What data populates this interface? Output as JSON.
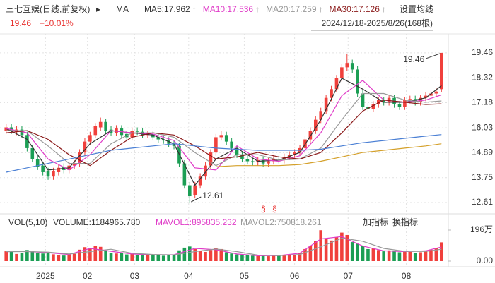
{
  "header": {
    "title": "三七互娱(日线,前复权)",
    "ma_label": "MA",
    "settings": "设置均线",
    "price": "19.46",
    "change": "+10.01%",
    "range": "2024/12/18-2025/8/26(168根)"
  },
  "chart_data": [
    {
      "type": "candlestick",
      "up_color": "#f0403c",
      "down_color": "#1b9e54",
      "grid": true,
      "xlim": [
        -0.5,
        83.5
      ],
      "xticks": [
        {
          "value": 7.5,
          "label": "2025"
        },
        {
          "value": 15.5,
          "label": "02"
        },
        {
          "value": 24.5,
          "label": "03"
        },
        {
          "value": 34.8,
          "label": "04"
        },
        {
          "value": 45.4,
          "label": "05"
        },
        {
          "value": 55,
          "label": "06"
        },
        {
          "value": 65.2,
          "label": "07"
        },
        {
          "value": 76.3,
          "label": "08"
        }
      ],
      "ylim": [
        12.19,
        20.33
      ],
      "yticks": [
        12.61,
        13.75,
        14.89,
        16.03,
        17.18,
        18.32,
        19.46
      ],
      "high_label": "19.46",
      "low_label": "12.61",
      "open": [
        15.9,
        16.05,
        15.85,
        15.95,
        15.7,
        15.1,
        14.6,
        14.3,
        14.05,
        13.8,
        14.0,
        14.25,
        14.1,
        14.3,
        14.4,
        14.9,
        15.4,
        15.7,
        16.05,
        16.3,
        15.95,
        15.8,
        16.0,
        15.75,
        15.6,
        15.9,
        15.85,
        15.7,
        15.75,
        15.6,
        15.5,
        15.45,
        15.3,
        15.2,
        14.4,
        13.4,
        12.95,
        13.4,
        13.8,
        14.3,
        14.9,
        15.6,
        15.7,
        15.4,
        15.1,
        14.8,
        14.6,
        14.5,
        14.45,
        14.55,
        14.4,
        14.5,
        14.6,
        14.55,
        14.7,
        14.8,
        14.9,
        15.1,
        15.5,
        15.9,
        16.4,
        16.8,
        17.4,
        17.8,
        18.3,
        18.8,
        19.0,
        18.7,
        17.6,
        17.0,
        16.9,
        17.1,
        17.3,
        17.2,
        17.4,
        17.1,
        17.0,
        17.3,
        17.35,
        17.2,
        17.4,
        17.5,
        17.6,
        17.8
      ],
      "high": [
        16.2,
        16.2,
        16.1,
        16.1,
        15.85,
        15.25,
        14.75,
        14.45,
        14.2,
        14.2,
        14.35,
        14.4,
        14.45,
        14.55,
        15.05,
        15.55,
        15.85,
        16.25,
        16.5,
        16.45,
        16.1,
        16.15,
        16.15,
        15.9,
        16.05,
        16.05,
        16.0,
        15.9,
        15.9,
        15.75,
        15.65,
        15.6,
        15.45,
        15.35,
        14.55,
        13.55,
        13.55,
        13.95,
        14.45,
        15.05,
        15.75,
        15.9,
        15.85,
        15.55,
        15.25,
        14.95,
        14.75,
        14.65,
        14.7,
        14.7,
        14.65,
        14.75,
        14.75,
        14.85,
        14.95,
        15.05,
        15.25,
        15.65,
        16.05,
        16.55,
        16.95,
        17.55,
        17.95,
        18.45,
        18.95,
        19.4,
        19.15,
        18.85,
        17.75,
        17.15,
        17.25,
        17.45,
        17.45,
        17.55,
        17.55,
        17.25,
        17.45,
        17.5,
        17.5,
        17.55,
        17.65,
        17.75,
        17.84,
        19.46
      ],
      "low": [
        15.75,
        15.75,
        15.7,
        15.55,
        14.95,
        14.45,
        14.1,
        13.85,
        13.65,
        13.65,
        13.85,
        13.95,
        13.95,
        14.15,
        14.25,
        14.75,
        15.25,
        15.55,
        15.9,
        15.75,
        15.65,
        15.65,
        15.55,
        15.45,
        15.45,
        15.7,
        15.55,
        15.55,
        15.45,
        15.35,
        15.3,
        15.15,
        15.05,
        14.25,
        13.25,
        12.61,
        12.8,
        13.25,
        13.65,
        14.15,
        14.75,
        15.45,
        15.25,
        14.95,
        14.65,
        14.45,
        14.35,
        14.3,
        14.3,
        14.25,
        14.25,
        14.35,
        14.4,
        14.4,
        14.55,
        14.65,
        14.75,
        14.95,
        15.35,
        15.75,
        16.25,
        16.65,
        17.25,
        17.65,
        18.15,
        18.65,
        18.55,
        17.45,
        16.85,
        16.75,
        16.75,
        16.95,
        17.05,
        17.05,
        16.95,
        16.85,
        16.85,
        17.15,
        17.05,
        17.05,
        17.25,
        17.35,
        17.45,
        17.65
      ],
      "close": [
        16.05,
        15.9,
        15.95,
        15.7,
        15.1,
        14.6,
        14.25,
        14.0,
        13.8,
        14.05,
        14.2,
        14.1,
        14.3,
        14.4,
        14.9,
        15.4,
        15.7,
        16.1,
        16.3,
        15.9,
        15.8,
        16.0,
        15.7,
        15.6,
        15.9,
        15.85,
        15.7,
        15.75,
        15.6,
        15.5,
        15.45,
        15.3,
        15.2,
        14.4,
        13.4,
        12.9,
        13.4,
        13.8,
        14.3,
        14.9,
        15.6,
        15.7,
        15.4,
        15.1,
        14.8,
        14.6,
        14.5,
        14.45,
        14.55,
        14.4,
        14.5,
        14.6,
        14.55,
        14.7,
        14.8,
        14.9,
        15.1,
        15.5,
        15.9,
        16.4,
        16.8,
        17.4,
        17.8,
        18.3,
        18.8,
        19.0,
        18.7,
        17.6,
        17.0,
        16.9,
        17.1,
        17.3,
        17.2,
        17.4,
        17.1,
        17.0,
        17.3,
        17.35,
        17.2,
        17.4,
        17.5,
        17.6,
        17.69,
        19.46
      ],
      "series": [
        {
          "name": "MA5:17.962",
          "color": "#333333",
          "x": [
            0,
            4,
            8,
            12,
            16,
            20,
            24,
            28,
            32,
            36,
            40,
            44,
            48,
            52,
            56,
            60,
            64,
            68,
            72,
            76,
            80,
            83
          ],
          "values": [
            16.0,
            15.5,
            14.1,
            14.2,
            15.3,
            15.9,
            15.8,
            15.7,
            15.3,
            13.4,
            14.6,
            15.1,
            14.5,
            14.55,
            14.9,
            16.4,
            18.3,
            17.8,
            17.2,
            17.2,
            17.4,
            17.96
          ]
        },
        {
          "name": "MA10:17.536",
          "color": "#e03cc8",
          "x": [
            0,
            4,
            8,
            12,
            16,
            20,
            24,
            28,
            32,
            36,
            40,
            44,
            48,
            52,
            56,
            60,
            64,
            68,
            72,
            76,
            80,
            83
          ],
          "values": [
            16.0,
            15.8,
            14.6,
            14.1,
            14.8,
            15.9,
            15.8,
            15.75,
            15.45,
            14.2,
            14.1,
            15.2,
            14.6,
            14.5,
            14.75,
            15.8,
            17.5,
            18.2,
            17.3,
            17.2,
            17.3,
            17.54
          ]
        },
        {
          "name": "MA20:17.259",
          "color": "#999999",
          "x": [
            0,
            4,
            8,
            12,
            16,
            20,
            24,
            28,
            32,
            36,
            40,
            44,
            48,
            52,
            56,
            60,
            64,
            68,
            72,
            76,
            80,
            83
          ],
          "values": [
            15.9,
            15.9,
            15.2,
            14.4,
            14.4,
            15.3,
            15.8,
            15.8,
            15.6,
            14.9,
            14.3,
            14.8,
            14.8,
            14.55,
            14.6,
            15.1,
            16.4,
            17.6,
            17.6,
            17.3,
            17.2,
            17.26
          ]
        },
        {
          "name": "MA30:17.126",
          "color": "#8b1a1a",
          "x": [
            0,
            4,
            8,
            12,
            16,
            20,
            24,
            28,
            32,
            36,
            40,
            44,
            48,
            52,
            56,
            60,
            64,
            68,
            72,
            76,
            80,
            83
          ],
          "values": [
            15.8,
            15.9,
            15.5,
            14.8,
            14.3,
            15.0,
            15.6,
            15.8,
            15.7,
            15.2,
            14.6,
            14.7,
            14.9,
            14.7,
            14.6,
            14.9,
            15.8,
            16.8,
            17.3,
            17.2,
            17.1,
            17.13
          ]
        },
        {
          "color": "#4a7fd4",
          "x": [
            0,
            4,
            8,
            12,
            16,
            20,
            24,
            28,
            32,
            36,
            40,
            44,
            48,
            52,
            56,
            60,
            64,
            68,
            72,
            76,
            80,
            83
          ],
          "values": [
            14.0,
            14.2,
            14.4,
            14.6,
            14.8,
            15.0,
            15.1,
            15.2,
            15.3,
            15.2,
            15.1,
            15.05,
            15.0,
            15.0,
            15.0,
            15.05,
            15.2,
            15.35,
            15.45,
            15.55,
            15.65,
            15.72
          ]
        },
        {
          "color": "#d4a02a",
          "x": [
            0,
            4,
            8,
            12,
            16,
            20,
            24,
            28,
            32,
            36,
            40,
            44,
            48,
            52,
            56,
            60,
            64,
            68,
            72,
            76,
            80,
            83
          ],
          "values": [
            null,
            null,
            null,
            null,
            null,
            null,
            null,
            null,
            null,
            null,
            14.25,
            14.3,
            14.3,
            14.3,
            14.35,
            14.5,
            14.7,
            14.9,
            15.0,
            15.1,
            15.2,
            15.3
          ]
        }
      ]
    },
    {
      "type": "bar",
      "title": "VOL(5,10)",
      "legend_label": "VOLUME:1184965.780",
      "buttons": [
        "加指标",
        "换指标"
      ],
      "ylim": [
        0,
        1960000
      ],
      "yticks": [
        {
          "value": 0,
          "label": "0.00"
        },
        {
          "value": 1960000,
          "label": "196万"
        }
      ],
      "values": [
        620000,
        580000,
        450000,
        520000,
        700000,
        640000,
        520000,
        480000,
        560000,
        430000,
        380000,
        350000,
        420000,
        460000,
        720000,
        880000,
        820000,
        950000,
        900000,
        650000,
        520000,
        480000,
        500000,
        420000,
        460000,
        400000,
        380000,
        420000,
        390000,
        360000,
        340000,
        380000,
        420000,
        680000,
        850000,
        920000,
        760000,
        640000,
        580000,
        700000,
        820000,
        760000,
        560000,
        480000,
        420000,
        380000,
        360000,
        340000,
        320000,
        330000,
        310000,
        350000,
        330000,
        360000,
        380000,
        420000,
        520000,
        760000,
        980000,
        1250000,
        1950000,
        1400000,
        1300000,
        1500000,
        1800000,
        1650000,
        1200000,
        1100000,
        980000,
        760000,
        820000,
        700000,
        620000,
        680000,
        600000,
        560000,
        640000,
        580000,
        520000,
        560000,
        640000,
        720000,
        800000,
        1184965.78
      ],
      "series": [
        {
          "name": "MAVOL1:895835.232",
          "color": "#e03cc8",
          "x": [
            0,
            4,
            8,
            12,
            16,
            20,
            24,
            28,
            32,
            36,
            40,
            44,
            48,
            52,
            56,
            60,
            64,
            68,
            72,
            76,
            80,
            83
          ],
          "values": [
            600000,
            610000,
            530000,
            420000,
            800000,
            620000,
            450000,
            400000,
            400000,
            800000,
            720000,
            450000,
            340000,
            350000,
            500000,
            1400000,
            1550000,
            950000,
            650000,
            600000,
            650000,
            895835.232
          ]
        },
        {
          "name": "MAVOL2:750818.261",
          "color": "#999999",
          "x": [
            0,
            4,
            8,
            12,
            16,
            20,
            24,
            28,
            32,
            36,
            40,
            44,
            48,
            52,
            56,
            60,
            64,
            68,
            72,
            76,
            80,
            83
          ],
          "values": [
            600000,
            600000,
            570000,
            450000,
            600000,
            750000,
            500000,
            420000,
            390000,
            600000,
            760000,
            600000,
            380000,
            345000,
            420000,
            900000,
            1450000,
            1250000,
            800000,
            620000,
            610000,
            750818.261
          ]
        }
      ]
    }
  ]
}
